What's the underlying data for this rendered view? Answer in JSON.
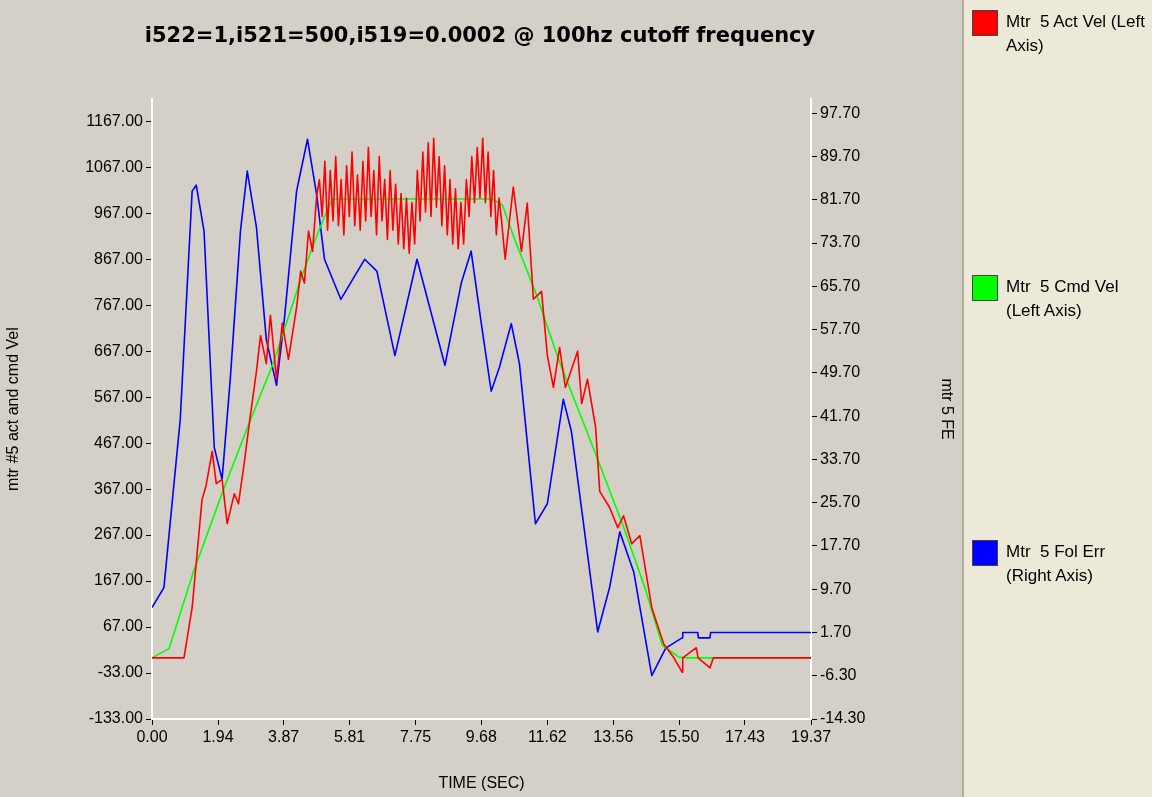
{
  "chart_data": {
    "type": "line",
    "title": "i522=1,i521=500,i519=0.0002 @ 100hz cutoff frequency",
    "xlabel": "TIME (SEC)",
    "ylabel": "mtr #5 act and cmd Vel",
    "y2label": "mtr 5 FE",
    "xlim": [
      0,
      19.37
    ],
    "xticks": [
      {
        "value": 0,
        "label": "0.00"
      },
      {
        "value": 1.94,
        "label": "1.94"
      },
      {
        "value": 3.87,
        "label": "3.87"
      },
      {
        "value": 5.81,
        "label": "5.81"
      },
      {
        "value": 7.75,
        "label": "7.75"
      },
      {
        "value": 9.68,
        "label": "9.68"
      },
      {
        "value": 11.62,
        "label": "11.62"
      },
      {
        "value": 13.56,
        "label": "13.56"
      },
      {
        "value": 15.5,
        "label": "15.50"
      },
      {
        "value": 17.43,
        "label": "17.43"
      },
      {
        "value": 19.37,
        "label": "19.37"
      }
    ],
    "ylim": [
      -133,
      1215
    ],
    "yticks": [
      {
        "value": -133,
        "label": "-133.00"
      },
      {
        "value": -33,
        "label": "-33.00"
      },
      {
        "value": 67,
        "label": "67.00"
      },
      {
        "value": 167,
        "label": "167.00"
      },
      {
        "value": 267,
        "label": "267.00"
      },
      {
        "value": 367,
        "label": "367.00"
      },
      {
        "value": 467,
        "label": "467.00"
      },
      {
        "value": 567,
        "label": "567.00"
      },
      {
        "value": 667,
        "label": "667.00"
      },
      {
        "value": 767,
        "label": "767.00"
      },
      {
        "value": 867,
        "label": "867.00"
      },
      {
        "value": 967,
        "label": "967.00"
      },
      {
        "value": 1067,
        "label": "1067.00"
      },
      {
        "value": 1167,
        "label": "1167.00"
      }
    ],
    "y2lim": [
      -14.3,
      100.3
    ],
    "y2ticks": [
      {
        "value": -14.3,
        "label": "-14.30"
      },
      {
        "value": -6.3,
        "label": "-6.30"
      },
      {
        "value": 1.7,
        "label": "1.70"
      },
      {
        "value": 9.7,
        "label": "9.70"
      },
      {
        "value": 17.7,
        "label": "17.70"
      },
      {
        "value": 25.7,
        "label": "25.70"
      },
      {
        "value": 33.7,
        "label": "33.70"
      },
      {
        "value": 41.7,
        "label": "41.70"
      },
      {
        "value": 49.7,
        "label": "49.70"
      },
      {
        "value": 57.7,
        "label": "57.70"
      },
      {
        "value": 65.7,
        "label": "65.70"
      },
      {
        "value": 73.7,
        "label": "73.70"
      },
      {
        "value": 81.7,
        "label": "81.70"
      },
      {
        "value": 89.7,
        "label": "89.70"
      },
      {
        "value": 97.7,
        "label": "97.70"
      }
    ],
    "grid": false,
    "legend": "right",
    "marker": "none",
    "line_style": "solid",
    "series": [
      {
        "name": "Mtr  5 Act Vel (Left Axis)",
        "color": "#ff0000",
        "x": [
          0,
          0.94,
          1.18,
          1.47,
          1.59,
          1.77,
          1.89,
          2.06,
          2.21,
          2.42,
          2.54,
          2.71,
          2.89,
          3.07,
          3.19,
          3.36,
          3.48,
          3.66,
          3.83,
          4.01,
          4.25,
          4.37,
          4.48,
          4.6,
          4.72,
          4.84,
          4.92,
          5.0,
          5.08,
          5.16,
          5.24,
          5.32,
          5.4,
          5.48,
          5.56,
          5.64,
          5.72,
          5.8,
          5.88,
          5.96,
          6.04,
          6.12,
          6.2,
          6.28,
          6.36,
          6.44,
          6.52,
          6.6,
          6.68,
          6.76,
          6.84,
          6.92,
          7.0,
          7.08,
          7.16,
          7.24,
          7.32,
          7.4,
          7.48,
          7.56,
          7.64,
          7.72,
          7.8,
          7.88,
          7.96,
          8.04,
          8.12,
          8.2,
          8.28,
          8.36,
          8.44,
          8.52,
          8.6,
          8.68,
          8.76,
          8.84,
          8.92,
          9.0,
          9.08,
          9.16,
          9.24,
          9.32,
          9.4,
          9.48,
          9.56,
          9.64,
          9.72,
          9.8,
          9.88,
          9.96,
          10.04,
          10.12,
          10.2,
          10.27,
          10.38,
          10.62,
          10.86,
          11.03,
          11.21,
          11.45,
          11.62,
          11.8,
          11.98,
          12.15,
          12.51,
          12.63,
          12.8,
          13.04,
          13.16,
          13.45,
          13.69,
          13.86,
          14.1,
          14.34,
          14.69,
          15.04,
          15.34,
          15.58,
          15.6,
          16.0,
          16.05,
          16.4,
          16.5,
          19.37
        ],
        "values": [
          0,
          0,
          109,
          344,
          375,
          449,
          379,
          388,
          292,
          357,
          335,
          423,
          527,
          623,
          701,
          640,
          745,
          606,
          728,
          649,
          762,
          841,
          815,
          928,
          884,
          1006,
          1040,
          960,
          1080,
          930,
          1060,
          950,
          1090,
          940,
          1040,
          920,
          1070,
          960,
          1100,
          940,
          1050,
          930,
          1080,
          950,
          1110,
          960,
          1060,
          920,
          1090,
          950,
          1040,
          910,
          1060,
          930,
          1030,
          900,
          1010,
          890,
          1000,
          880,
          990,
          900,
          1060,
          950,
          1100,
          970,
          1120,
          960,
          1130,
          980,
          1090,
          940,
          1070,
          920,
          1040,
          900,
          1020,
          890,
          990,
          900,
          1040,
          960,
          1090,
          990,
          1110,
          1000,
          1130,
          990,
          1100,
          960,
          1060,
          920,
          1000,
          954,
          867,
          1024,
          884,
          989,
          780,
          797,
          658,
          588,
          675,
          588,
          667,
          553,
          606,
          501,
          362,
          327,
          283,
          309,
          248,
          266,
          109,
          30,
          0,
          -31,
          0,
          22,
          0,
          -22,
          0,
          0
        ]
      },
      {
        "name": "Mtr  5 Cmd Vel (Left Axis)",
        "color": "#00ff00",
        "x": [
          0,
          0.5,
          1.21,
          2.03,
          2.8,
          3.57,
          4.39,
          4.8,
          5.04,
          5.3,
          10.0,
          10.3,
          10.64,
          11.3,
          11.94,
          12.9,
          13.83,
          14.5,
          15.0,
          15.48,
          15.7,
          19.37
        ],
        "values": [
          0,
          20,
          185,
          352,
          500,
          642,
          827,
          910,
          954,
          998,
          998,
          985,
          914,
          790,
          651,
          470,
          291,
          150,
          27,
          2,
          0,
          0
        ]
      },
      {
        "name": "Mtr  5 Fol Err (Right Axis)",
        "color": "#0000ff",
        "axis": "y2",
        "x": [
          0,
          0.35,
          0.83,
          1.18,
          1.3,
          1.53,
          1.83,
          2.06,
          2.3,
          2.6,
          2.8,
          3.07,
          3.36,
          3.66,
          3.89,
          4.25,
          4.57,
          4.84,
          5.07,
          5.55,
          6.25,
          6.61,
          7.14,
          7.79,
          8.61,
          9.09,
          9.38,
          9.68,
          9.97,
          10.21,
          10.56,
          10.8,
          11.27,
          11.62,
          12.09,
          12.33,
          13.1,
          13.45,
          13.75,
          14.16,
          14.69,
          15.1,
          15.58,
          15.6,
          16.04,
          16.06,
          16.4,
          16.42,
          19.37
        ],
        "values": [
          6.3,
          10,
          41.1,
          83.3,
          84.4,
          75.9,
          35.9,
          30,
          48.5,
          75.9,
          87,
          76.6,
          55.9,
          47.4,
          59.6,
          83.3,
          92.9,
          82.6,
          70.7,
          63.3,
          70.7,
          68.5,
          52.9,
          70.7,
          51.1,
          66.3,
          72.2,
          58.8,
          46.3,
          50.7,
          58.8,
          51.4,
          21.8,
          25.5,
          44.8,
          38.8,
          1.8,
          10,
          20.3,
          12.9,
          -6.3,
          -1.2,
          0.7,
          1.7,
          1.7,
          0.7,
          0.7,
          1.7,
          1.7
        ]
      }
    ]
  }
}
